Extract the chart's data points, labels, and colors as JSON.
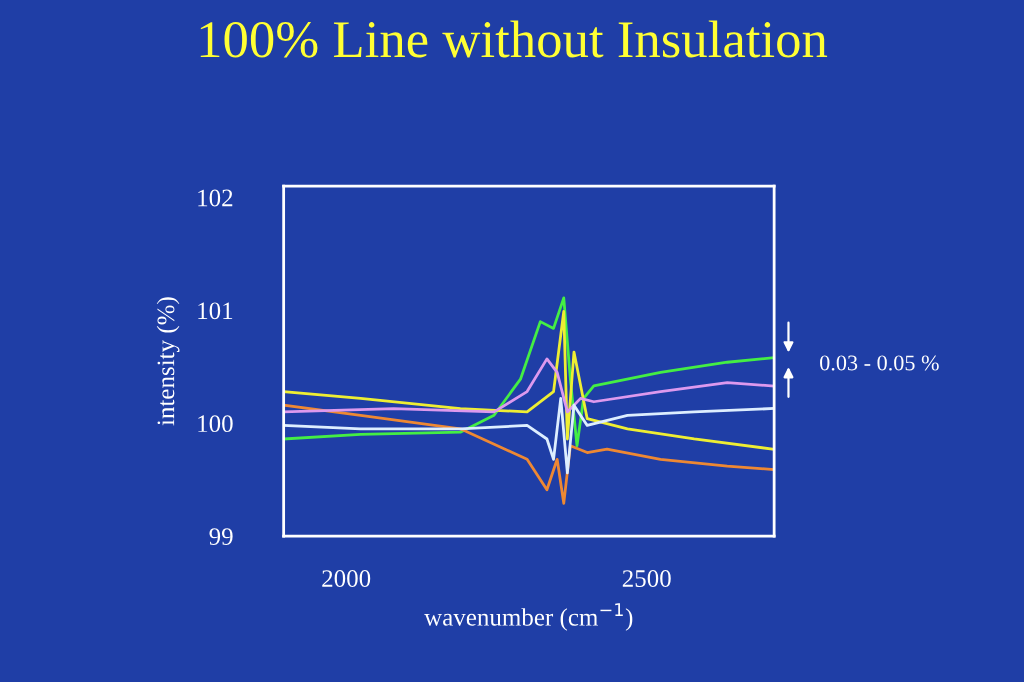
{
  "chart_data": {
    "type": "line",
    "title": "100% Line without Insulation",
    "xlabel": "wavenumber (cm$^{−1}$)",
    "ylabel": "intensity (%)",
    "xlim": [
      1896,
      2712
    ],
    "ylim": [
      99,
      102.1
    ],
    "xticks": [
      2000,
      2500
    ],
    "yticks": [
      99,
      100,
      101,
      102
    ],
    "grid": false,
    "marker": "none",
    "line_style": "solid",
    "annotations": [
      "0.03 - 0.05 %"
    ],
    "series": [
      {
        "color": "#44ee44",
        "x": [
          1896,
          2024,
          2190,
          2246,
          2290,
          2323,
          2345,
          2362,
          2373,
          2384,
          2395,
          2412,
          2523,
          2634,
          2710
        ],
        "values": [
          99.86,
          99.9,
          99.92,
          100.07,
          100.39,
          100.9,
          100.84,
          101.11,
          100.39,
          99.8,
          100.22,
          100.33,
          100.45,
          100.54,
          100.58
        ]
      },
      {
        "color": "#eeee33",
        "x": [
          1896,
          2024,
          2190,
          2301,
          2345,
          2362,
          2368,
          2379,
          2401,
          2468,
          2579,
          2710
        ],
        "values": [
          100.28,
          100.22,
          100.13,
          100.1,
          100.28,
          100.99,
          99.86,
          100.63,
          100.04,
          99.95,
          99.86,
          99.77
        ]
      },
      {
        "color": "#ee8833",
        "x": [
          1896,
          2024,
          2190,
          2301,
          2334,
          2351,
          2362,
          2373,
          2401,
          2434,
          2523,
          2634,
          2710
        ],
        "values": [
          100.16,
          100.07,
          99.95,
          99.68,
          99.41,
          99.68,
          99.29,
          99.8,
          99.74,
          99.77,
          99.68,
          99.62,
          99.59
        ]
      },
      {
        "color": "#dd99ee",
        "x": [
          1896,
          2079,
          2246,
          2301,
          2334,
          2351,
          2368,
          2390,
          2412,
          2523,
          2634,
          2710
        ],
        "values": [
          100.1,
          100.13,
          100.1,
          100.28,
          100.57,
          100.45,
          100.1,
          100.22,
          100.19,
          100.28,
          100.36,
          100.33
        ]
      },
      {
        "color": "#ddeeff",
        "x": [
          1896,
          2024,
          2190,
          2301,
          2334,
          2345,
          2357,
          2368,
          2379,
          2401,
          2468,
          2579,
          2710
        ],
        "values": [
          99.98,
          99.95,
          99.95,
          99.98,
          99.86,
          99.68,
          100.22,
          99.56,
          100.16,
          99.98,
          100.07,
          100.1,
          100.13
        ]
      }
    ]
  }
}
